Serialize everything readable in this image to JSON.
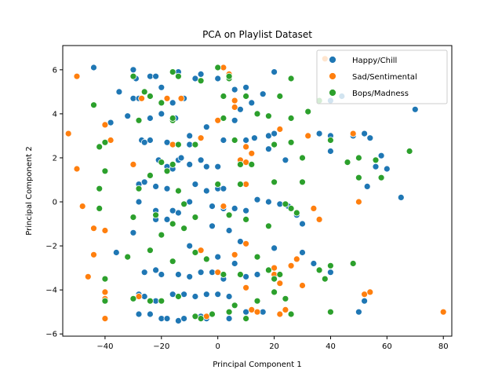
{
  "chart_data": {
    "type": "scatter",
    "title": "PCA on Playlist Dataset",
    "xlabel": "Principal Component 1",
    "ylabel": "Principal Component 2",
    "xlim": [
      -55,
      83
    ],
    "ylim": [
      -6.1,
      7.1
    ],
    "xticks": [
      -40,
      -20,
      0,
      20,
      40,
      60,
      80
    ],
    "yticks": [
      -6,
      -4,
      -2,
      0,
      2,
      4,
      6
    ],
    "grid": false,
    "legend_position": "top-right",
    "series": [
      {
        "name": "Happy/Chill",
        "color": "#1f77b4",
        "points": [
          [
            -44,
            6.1
          ],
          [
            -30,
            6.0
          ],
          [
            -29,
            5.6
          ],
          [
            -35,
            5.0
          ],
          [
            -30,
            4.7
          ],
          [
            -28,
            4.7
          ],
          [
            -38,
            3.6
          ],
          [
            -40,
            3.5
          ],
          [
            -32,
            3.9
          ],
          [
            -24,
            5.7
          ],
          [
            -22,
            5.7
          ],
          [
            -20,
            5.2
          ],
          [
            -14,
            5.9
          ],
          [
            -16,
            4.5
          ],
          [
            -12,
            4.7
          ],
          [
            -20,
            4.0
          ],
          [
            -15,
            3.8
          ],
          [
            -24,
            3.8
          ],
          [
            -27,
            2.8
          ],
          [
            -24,
            2.8
          ],
          [
            -26,
            2.7
          ],
          [
            -18,
            2.7
          ],
          [
            -14,
            2.6
          ],
          [
            -10,
            3.0
          ],
          [
            -4,
            3.4
          ],
          [
            -10,
            2.6
          ],
          [
            -21,
            1.9
          ],
          [
            -18,
            1.6
          ],
          [
            -16,
            1.5
          ],
          [
            -14,
            1.9
          ],
          [
            -13,
            2.0
          ],
          [
            -10,
            1.7
          ],
          [
            -6,
            1.9
          ],
          [
            -4,
            1.6
          ],
          [
            0,
            1.6
          ],
          [
            2,
            2.8
          ],
          [
            6,
            2.8
          ],
          [
            10,
            2.8
          ],
          [
            13,
            2.9
          ],
          [
            18,
            3.0
          ],
          [
            20,
            3.1
          ],
          [
            18,
            2.4
          ],
          [
            24,
            1.9
          ],
          [
            36,
            3.1
          ],
          [
            40,
            3.0
          ],
          [
            40,
            2.3
          ],
          [
            48,
            3.0
          ],
          [
            52,
            3.1
          ],
          [
            54,
            2.9
          ],
          [
            58,
            2.1
          ],
          [
            56,
            1.6
          ],
          [
            65,
            0.2
          ],
          [
            -28,
            0.8
          ],
          [
            -26,
            0.9
          ],
          [
            -22,
            0.7
          ],
          [
            -18,
            0.6
          ],
          [
            -14,
            0.5
          ],
          [
            -8,
            0.8
          ],
          [
            -4,
            0.5
          ],
          [
            0,
            0.6
          ],
          [
            2,
            0.6
          ],
          [
            -28,
            0
          ],
          [
            -22,
            -0.4
          ],
          [
            -16,
            -0.4
          ],
          [
            -14,
            -0.5
          ],
          [
            -10,
            0
          ],
          [
            -2,
            -0.2
          ],
          [
            2,
            -0.3
          ],
          [
            6,
            -0.3
          ],
          [
            10,
            -0.4
          ],
          [
            14,
            0.1
          ],
          [
            18,
            0
          ],
          [
            22,
            -0.1
          ],
          [
            25,
            -0.2
          ],
          [
            28,
            -0.6
          ],
          [
            30,
            -1.0
          ],
          [
            -30,
            -1.4
          ],
          [
            -22,
            -0.8
          ],
          [
            -18,
            -0.8
          ],
          [
            -2,
            -1.1
          ],
          [
            4,
            -1.3
          ],
          [
            8,
            -1.8
          ],
          [
            -36,
            -2.3
          ],
          [
            -10,
            -2.0
          ],
          [
            -6,
            -2.2
          ],
          [
            0,
            -2.5
          ],
          [
            6,
            -2.8
          ],
          [
            20,
            -2.1
          ],
          [
            30,
            -2.3
          ],
          [
            34,
            -2.8
          ],
          [
            -26,
            -3.2
          ],
          [
            -22,
            -3.1
          ],
          [
            -20,
            -3.3
          ],
          [
            -14,
            -3.3
          ],
          [
            -10,
            -3.4
          ],
          [
            -6,
            -3.2
          ],
          [
            -2,
            -3.2
          ],
          [
            2,
            -3.5
          ],
          [
            10,
            -3.4
          ],
          [
            14,
            -3.3
          ],
          [
            40,
            -3.2
          ],
          [
            50,
            -5.0
          ],
          [
            52,
            -4.5
          ],
          [
            -28,
            -4.2
          ],
          [
            -26,
            -4.3
          ],
          [
            -22,
            -4.5
          ],
          [
            -20,
            -4.5
          ],
          [
            -16,
            -4.2
          ],
          [
            -12,
            -4.2
          ],
          [
            -8,
            -4.3
          ],
          [
            -4,
            -4.2
          ],
          [
            0,
            -4.2
          ],
          [
            4,
            -4.3
          ],
          [
            -28,
            -5.1
          ],
          [
            -24,
            -5.1
          ],
          [
            -20,
            -5.3
          ],
          [
            -18,
            -5.3
          ],
          [
            -14,
            -5.4
          ],
          [
            -12,
            -5.3
          ],
          [
            -6,
            -5.2
          ],
          [
            -4,
            -5.3
          ],
          [
            4,
            -5.3
          ],
          [
            10,
            -5.0
          ],
          [
            16,
            -5.0
          ],
          [
            -6,
            5.8
          ],
          [
            -8,
            5.6
          ],
          [
            0,
            5.6
          ],
          [
            6,
            5.1
          ],
          [
            10,
            5.2
          ],
          [
            12,
            4.5
          ],
          [
            20,
            5.9
          ],
          [
            40,
            4.6
          ],
          [
            44,
            4.8
          ],
          [
            6,
            3.7
          ],
          [
            16,
            4.9
          ],
          [
            8,
            4.2
          ],
          [
            70,
            4.2
          ],
          [
            53,
            0.7
          ],
          [
            60,
            1.5
          ],
          [
            8,
            1.8
          ]
        ]
      },
      {
        "name": "Sad/Sentimental",
        "color": "#ff7f0e",
        "points": [
          [
            -50,
            5.7
          ],
          [
            -40,
            3.5
          ],
          [
            -38,
            2.8
          ],
          [
            -53,
            3.1
          ],
          [
            -50,
            1.5
          ],
          [
            -48,
            -0.2
          ],
          [
            -44,
            -1.2
          ],
          [
            -40,
            -1.3
          ],
          [
            -44,
            -2.4
          ],
          [
            -46,
            -3.4
          ],
          [
            -40,
            -4.1
          ],
          [
            -40,
            -4.4
          ],
          [
            -40,
            -5.3
          ],
          [
            -30,
            1.7
          ],
          [
            -27,
            4.7
          ],
          [
            -18,
            4.7
          ],
          [
            -13,
            4.7
          ],
          [
            -16,
            2.6
          ],
          [
            -6,
            2.9
          ],
          [
            2,
            6.1
          ],
          [
            4,
            5.8
          ],
          [
            6,
            4.6
          ],
          [
            6,
            4.3
          ],
          [
            0,
            3.7
          ],
          [
            10,
            2.5
          ],
          [
            12,
            2.2
          ],
          [
            8,
            1.9
          ],
          [
            10,
            1.8
          ],
          [
            10,
            0.8
          ],
          [
            -6,
            -2.2
          ],
          [
            -4,
            -5.2
          ],
          [
            2,
            -0.2
          ],
          [
            6,
            -2.4
          ],
          [
            10,
            -1.9
          ],
          [
            0,
            -3.2
          ],
          [
            10,
            -3.9
          ],
          [
            12,
            -4.9
          ],
          [
            14,
            -5.0
          ],
          [
            20,
            -3.0
          ],
          [
            20,
            -3.3
          ],
          [
            22,
            -3.7
          ],
          [
            22,
            -5.1
          ],
          [
            24,
            -4.9
          ],
          [
            26,
            -2.9
          ],
          [
            28,
            -2.6
          ],
          [
            30,
            -3.8
          ],
          [
            36,
            -0.8
          ],
          [
            34,
            -0.3
          ],
          [
            32,
            3.0
          ],
          [
            38,
            6.5
          ],
          [
            48,
            3.1
          ],
          [
            50,
            0.0
          ],
          [
            52,
            -4.2
          ],
          [
            54,
            -4.1
          ],
          [
            80,
            -5.0
          ],
          [
            22,
            3.3
          ],
          [
            -28,
            -4.3
          ]
        ]
      },
      {
        "name": "Bops/Madness",
        "color": "#2ca02c",
        "points": [
          [
            -44,
            4.4
          ],
          [
            -42,
            2.5
          ],
          [
            -40,
            2.7
          ],
          [
            -40,
            1.4
          ],
          [
            -42,
            0.6
          ],
          [
            -42,
            -0.3
          ],
          [
            -30,
            5.7
          ],
          [
            -26,
            5.0
          ],
          [
            -28,
            3.7
          ],
          [
            -24,
            4.8
          ],
          [
            -20,
            4.5
          ],
          [
            -16,
            5.9
          ],
          [
            -14,
            5.7
          ],
          [
            -16,
            3.7
          ],
          [
            -16,
            3.8
          ],
          [
            -14,
            2.6
          ],
          [
            -18,
            1.4
          ],
          [
            -20,
            1.8
          ],
          [
            -16,
            1.7
          ],
          [
            -8,
            2.6
          ],
          [
            0,
            6.1
          ],
          [
            4,
            5.6
          ],
          [
            2,
            4.8
          ],
          [
            10,
            4.8
          ],
          [
            14,
            4.0
          ],
          [
            18,
            3.9
          ],
          [
            22,
            4.8
          ],
          [
            26,
            5.6
          ],
          [
            26,
            3.8
          ],
          [
            20,
            2.6
          ],
          [
            26,
            2.7
          ],
          [
            30,
            2.0
          ],
          [
            32,
            4.1
          ],
          [
            2,
            3.8
          ],
          [
            6,
            2.8
          ],
          [
            8,
            1.7
          ],
          [
            12,
            1.7
          ],
          [
            20,
            0.9
          ],
          [
            30,
            0.9
          ],
          [
            -24,
            1.2
          ],
          [
            -28,
            0.6
          ],
          [
            -14,
            0.5
          ],
          [
            0,
            0.8
          ],
          [
            8,
            0.8
          ],
          [
            -12,
            -0.1
          ],
          [
            -22,
            -0.6
          ],
          [
            -30,
            -0.7
          ],
          [
            -20,
            -1.5
          ],
          [
            -16,
            -1.0
          ],
          [
            -12,
            -1.2
          ],
          [
            -8,
            -0.7
          ],
          [
            4,
            -0.6
          ],
          [
            10,
            -0.8
          ],
          [
            18,
            -1.1
          ],
          [
            24,
            -0.1
          ],
          [
            26,
            -0.3
          ],
          [
            28,
            -0.5
          ],
          [
            -32,
            -2.5
          ],
          [
            -24,
            -2.2
          ],
          [
            -16,
            -2.7
          ],
          [
            -8,
            -2.3
          ],
          [
            -4,
            -2.6
          ],
          [
            2,
            -3.3
          ],
          [
            8,
            -3.3
          ],
          [
            14,
            -2.5
          ],
          [
            18,
            -3.1
          ],
          [
            20,
            -3.5
          ],
          [
            22,
            -3.3
          ],
          [
            36,
            -3.1
          ],
          [
            38,
            -3.5
          ],
          [
            40,
            -2.9
          ],
          [
            48,
            -2.8
          ],
          [
            -40,
            -3.5
          ],
          [
            -40,
            -4.5
          ],
          [
            -30,
            -4.4
          ],
          [
            -24,
            -4.5
          ],
          [
            -20,
            -4.5
          ],
          [
            -14,
            -4.3
          ],
          [
            -6,
            -5.3
          ],
          [
            -8,
            -5.2
          ],
          [
            -2,
            -5.1
          ],
          [
            4,
            -5.0
          ],
          [
            6,
            -4.7
          ],
          [
            10,
            -5.3
          ],
          [
            14,
            -4.5
          ],
          [
            20,
            -4.1
          ],
          [
            24,
            -4.4
          ],
          [
            26,
            -5.1
          ],
          [
            40,
            -5.0
          ],
          [
            46,
            1.8
          ],
          [
            50,
            2.0
          ],
          [
            50,
            1.1
          ],
          [
            56,
            1.9
          ],
          [
            58,
            1.1
          ],
          [
            68,
            2.3
          ],
          [
            40,
            2.8
          ],
          [
            36,
            4.6
          ],
          [
            -6,
            5.5
          ],
          [
            4,
            5.7
          ]
        ]
      }
    ]
  }
}
